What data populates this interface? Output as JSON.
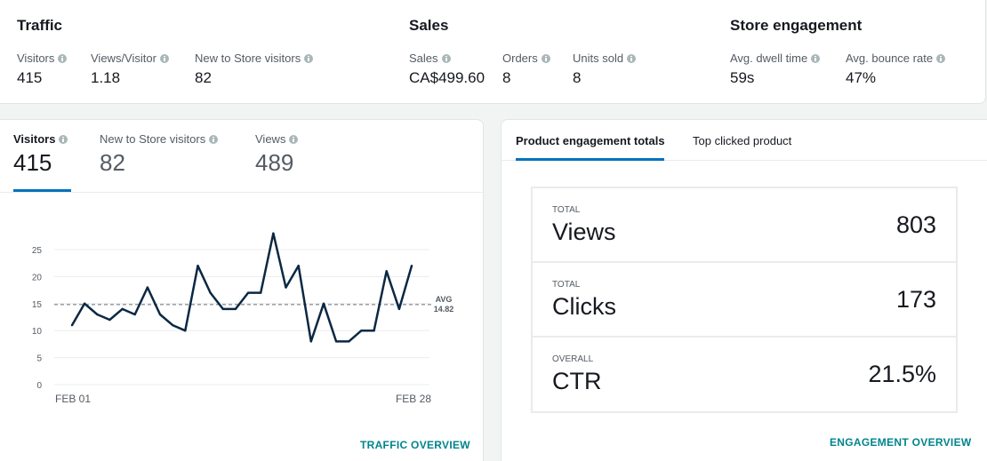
{
  "summary": {
    "traffic": {
      "title": "Traffic",
      "metrics": [
        {
          "label": "Visitors",
          "value": "415"
        },
        {
          "label": "Views/Visitor",
          "value": "1.18"
        },
        {
          "label": "New to Store visitors",
          "value": "82"
        }
      ]
    },
    "sales": {
      "title": "Sales",
      "metrics": [
        {
          "label": "Sales",
          "value": "CA$499.60"
        },
        {
          "label": "Orders",
          "value": "8"
        },
        {
          "label": "Units sold",
          "value": "8"
        }
      ]
    },
    "engagement": {
      "title": "Store engagement",
      "metrics": [
        {
          "label": "Avg. dwell time",
          "value": "59s"
        },
        {
          "label": "Avg. bounce rate",
          "value": "47%"
        }
      ]
    }
  },
  "traffic_card": {
    "tabs": [
      {
        "label": "Visitors",
        "value": "415"
      },
      {
        "label": "New to Store visitors",
        "value": "82"
      },
      {
        "label": "Views",
        "value": "489"
      }
    ],
    "active_tab": 0,
    "link": "TRAFFIC OVERVIEW"
  },
  "chart_data": {
    "type": "line",
    "x_start_label": "FEB 01",
    "x_end_label": "FEB 28",
    "y_ticks": [
      "0",
      "5",
      "10",
      "15",
      "20",
      "25"
    ],
    "ylim": [
      0,
      25
    ],
    "values": [
      11,
      15,
      13,
      12,
      14,
      13,
      18,
      13,
      11,
      10,
      22,
      17,
      14,
      14,
      17,
      17,
      28,
      18,
      22,
      8,
      15,
      8,
      8,
      10,
      10,
      21,
      14,
      22
    ],
    "avg_label": "AVG",
    "avg_value": "14.82",
    "avg": 14.82,
    "line_color": "#0b2843",
    "grid": true
  },
  "engagement_card": {
    "tabs": [
      {
        "label": "Product engagement totals"
      },
      {
        "label": "Top clicked product"
      }
    ],
    "totals": [
      {
        "eyebrow": "TOTAL",
        "name": "Views",
        "value": "803"
      },
      {
        "eyebrow": "TOTAL",
        "name": "Clicks",
        "value": "173"
      },
      {
        "eyebrow": "OVERALL",
        "name": "CTR",
        "value": "21.5%"
      }
    ],
    "link": "ENGAGEMENT OVERVIEW"
  },
  "colors": {
    "accent": "#0073bb",
    "link": "#00848c"
  }
}
